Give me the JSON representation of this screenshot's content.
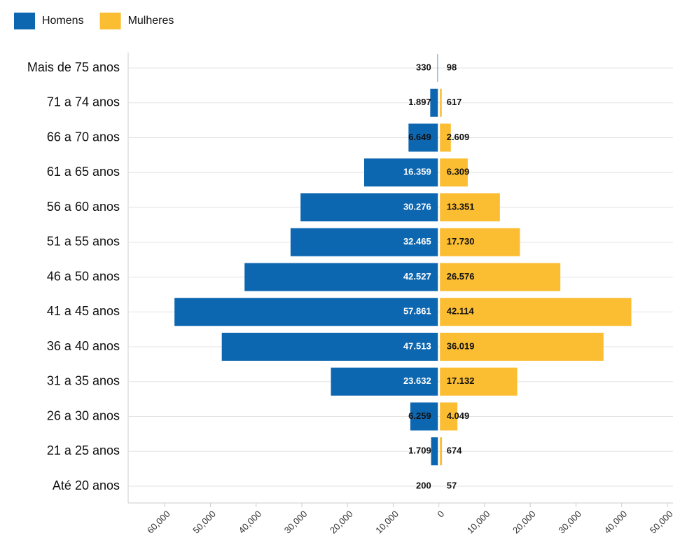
{
  "chart_data": {
    "type": "pyramid",
    "categories": [
      "Mais de 75 anos",
      "71 a 74 anos",
      "66 a 70 anos",
      "61 a 65 anos",
      "56 a 60 anos",
      "51 a 55 anos",
      "46 a 50 anos",
      "41 a 45 anos",
      "36 a 40 anos",
      "31 a 35 anos",
      "26 a 30 anos",
      "21 a 25 anos",
      "Até 20 anos"
    ],
    "series": [
      {
        "name": "Homens",
        "color": "#0d67b0",
        "values": [
          -330,
          -1897,
          -6649,
          -16359,
          -30276,
          -32465,
          -42527,
          -57861,
          -47513,
          -23632,
          -6259,
          -1709,
          -200
        ],
        "value_labels": [
          "330",
          "1.897",
          "6.649",
          "16.359",
          "30.276",
          "32.465",
          "42.527",
          "57.861",
          "47.513",
          "23.632",
          "6.259",
          "1.709",
          "200"
        ]
      },
      {
        "name": "Mulheres",
        "color": "#fbbd32",
        "values": [
          98,
          617,
          2609,
          6309,
          13351,
          17730,
          26576,
          42114,
          36019,
          17132,
          4049,
          674,
          57
        ],
        "value_labels": [
          "98",
          "617",
          "2.609",
          "6.309",
          "13.351",
          "17.730",
          "26.576",
          "42.114",
          "36.019",
          "17.132",
          "4.049",
          "674",
          "57"
        ]
      }
    ],
    "xlim": [
      -68000,
      50000
    ],
    "xticks": [
      {
        "value": -60000,
        "label": "60,000"
      },
      {
        "value": -50000,
        "label": "50,000"
      },
      {
        "value": -40000,
        "label": "40,000"
      },
      {
        "value": -30000,
        "label": "30,000"
      },
      {
        "value": -20000,
        "label": "20,000"
      },
      {
        "value": -10000,
        "label": "10,000"
      },
      0,
      {
        "value": 10000,
        "label": "10,000"
      },
      {
        "value": 20000,
        "label": "20,000"
      },
      {
        "value": 30000,
        "label": "30,000"
      },
      {
        "value": 40000,
        "label": "40,000"
      },
      {
        "value": 50000,
        "label": "50,000"
      }
    ],
    "legend": "top-left"
  }
}
